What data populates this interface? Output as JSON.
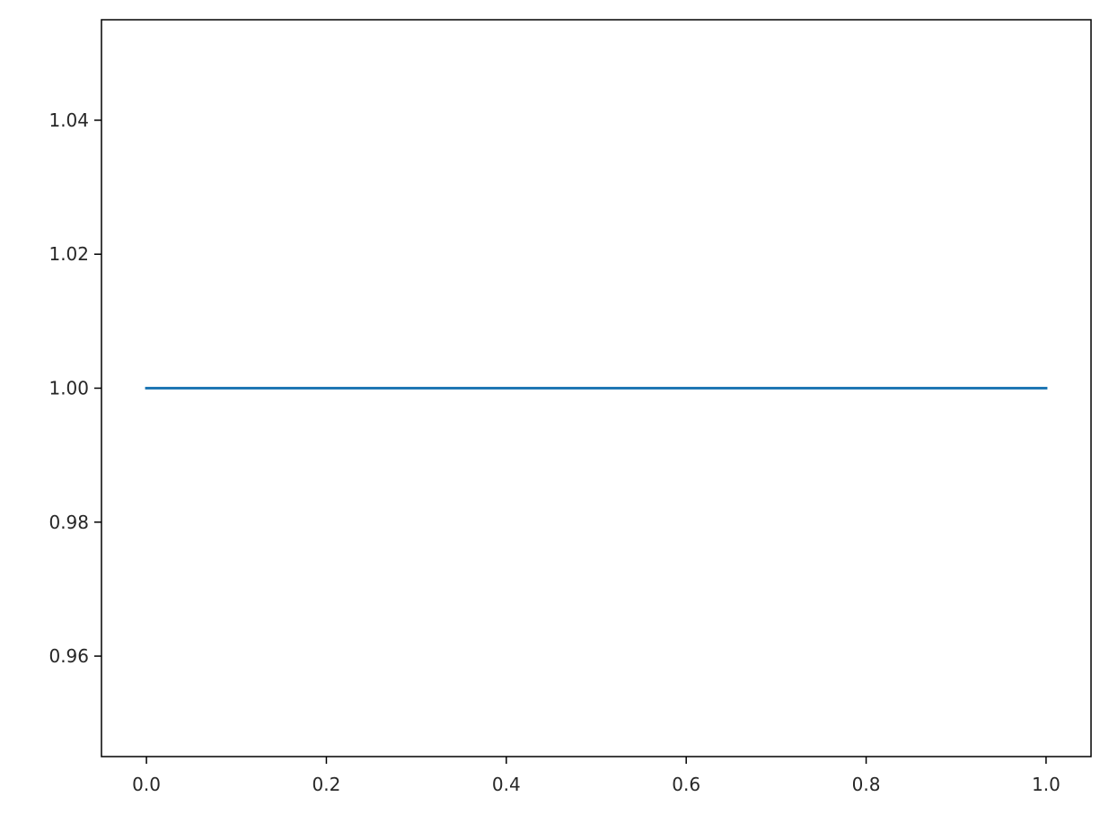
{
  "chart_data": {
    "type": "line",
    "title": "",
    "xlabel": "",
    "ylabel": "",
    "xlim": [
      -0.05,
      1.05
    ],
    "ylim": [
      0.945,
      1.055
    ],
    "x_ticks": [
      {
        "value": 0.0,
        "label": "0.0"
      },
      {
        "value": 0.2,
        "label": "0.2"
      },
      {
        "value": 0.4,
        "label": "0.4"
      },
      {
        "value": 0.6,
        "label": "0.6"
      },
      {
        "value": 0.8,
        "label": "0.8"
      },
      {
        "value": 1.0,
        "label": "1.0"
      }
    ],
    "y_ticks": [
      {
        "value": 0.96,
        "label": "0.96"
      },
      {
        "value": 0.98,
        "label": "0.98"
      },
      {
        "value": 1.0,
        "label": "1.00"
      },
      {
        "value": 1.02,
        "label": "1.02"
      },
      {
        "value": 1.04,
        "label": "1.04"
      }
    ],
    "grid": false,
    "series": [
      {
        "x": [
          0.0,
          1.0
        ],
        "y": [
          1.0,
          1.0
        ],
        "color": "#1f77b4"
      }
    ]
  }
}
